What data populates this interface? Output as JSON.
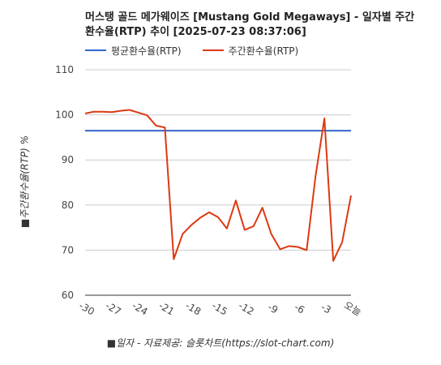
{
  "chart_data": {
    "type": "line",
    "title": "머스탱 골드 메가웨이즈 [Mustang Gold Megaways] - 일자별 주간 환수율(RTP) 추이 [2025-07-23 08:37:06]",
    "xlabel": "■일자 - 자료제공: 슬롯차트(https://slot-chart.com)",
    "ylabel": "■주간환수율(RTP) %",
    "ylim": [
      60,
      110
    ],
    "yticks": [
      60,
      70,
      80,
      90,
      100,
      110
    ],
    "x": [
      -30,
      -29,
      -28,
      -27,
      -26,
      -25,
      -24,
      -23,
      -22,
      -21,
      -20,
      -19,
      -18,
      -17,
      -16,
      -15,
      -14,
      -13,
      -12,
      -11,
      -10,
      -9,
      -8,
      -7,
      -6,
      -5,
      -4,
      -3,
      -2,
      -1,
      0
    ],
    "xtick_labels": [
      {
        "x": -30,
        "label": "-30"
      },
      {
        "x": -27,
        "label": "-27"
      },
      {
        "x": -24,
        "label": "-24"
      },
      {
        "x": -21,
        "label": "-21"
      },
      {
        "x": -18,
        "label": "-18"
      },
      {
        "x": -15,
        "label": "-15"
      },
      {
        "x": -12,
        "label": "-12"
      },
      {
        "x": -9,
        "label": "-9"
      },
      {
        "x": -6,
        "label": "-6"
      },
      {
        "x": -3,
        "label": "-3"
      },
      {
        "x": 0,
        "label": "오늘"
      }
    ],
    "legend_position": "top-left",
    "grid": true,
    "series": [
      {
        "name": "평균환수율(RTP)",
        "color": "#3366cc",
        "values": [
          96.5,
          96.5,
          96.5,
          96.5,
          96.5,
          96.5,
          96.5,
          96.5,
          96.5,
          96.5,
          96.5,
          96.5,
          96.5,
          96.5,
          96.5,
          96.5,
          96.5,
          96.5,
          96.5,
          96.5,
          96.5,
          96.5,
          96.5,
          96.5,
          96.5,
          96.5,
          96.5,
          96.5,
          96.5,
          96.5,
          96.5
        ]
      },
      {
        "name": "주간환수율(RTP)",
        "color": "#dc3912",
        "values": [
          100.3,
          100.7,
          100.7,
          100.6,
          100.9,
          101.1,
          100.5,
          99.9,
          97.6,
          97.2,
          68.0,
          73.6,
          75.6,
          77.2,
          78.4,
          77.3,
          74.8,
          81.0,
          74.5,
          75.3,
          79.4,
          73.6,
          70.2,
          70.9,
          70.7,
          70.0,
          86.5,
          99.2,
          67.6,
          71.8,
          82.1
        ]
      }
    ]
  }
}
